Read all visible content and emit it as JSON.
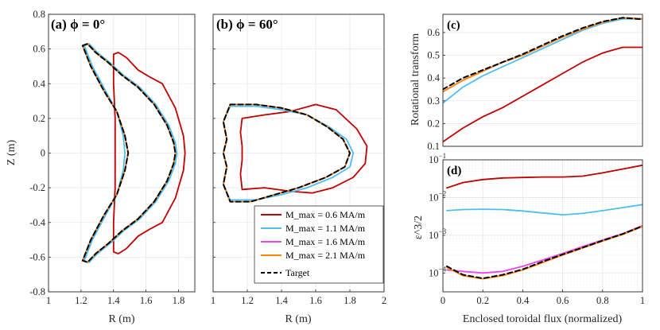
{
  "colors": {
    "m06": "#c00000",
    "m11": "#4dbeee",
    "m16": "#ee44ee",
    "m21": "#ff8800",
    "target": "#000000"
  },
  "chart_data": [
    {
      "id": "a",
      "type": "line",
      "panel_label": "(a) ϕ = 0°",
      "xlabel": "R (m)",
      "ylabel": "Z (m)",
      "xlim": [
        1,
        1.9
      ],
      "ylim": [
        -0.8,
        0.8
      ],
      "xticks": [
        1,
        1.2,
        1.4,
        1.6,
        1.8
      ],
      "yticks": [
        -0.8,
        -0.6,
        -0.4,
        -0.2,
        0,
        0.2,
        0.4,
        0.6,
        0.8
      ],
      "ytick_labels": [
        "-0.8",
        "-0.6",
        "-0.4",
        "-0.2",
        "0",
        "0.2",
        "0.4",
        "0.6",
        "0.8"
      ],
      "series": [
        {
          "name": "M_max = 0.6 MA/m",
          "color_key": "m06",
          "x": [
            1.4,
            1.43,
            1.48,
            1.55,
            1.62,
            1.7,
            1.78,
            1.83,
            1.84,
            1.83,
            1.78,
            1.7,
            1.62,
            1.55,
            1.48,
            1.43,
            1.4,
            1.4,
            1.41,
            1.41,
            1.41,
            1.4,
            1.4
          ],
          "y": [
            0.57,
            0.58,
            0.55,
            0.48,
            0.44,
            0.4,
            0.26,
            0.1,
            0.0,
            -0.1,
            -0.26,
            -0.4,
            -0.44,
            -0.48,
            -0.55,
            -0.58,
            -0.57,
            -0.4,
            -0.2,
            0.0,
            0.2,
            0.4,
            0.57
          ]
        },
        {
          "name": "M_max = 1.1 MA/m",
          "color_key": "m11",
          "x": [
            1.22,
            1.25,
            1.3,
            1.38,
            1.46,
            1.56,
            1.66,
            1.74,
            1.78,
            1.79,
            1.78,
            1.74,
            1.66,
            1.56,
            1.46,
            1.38,
            1.3,
            1.25,
            1.22,
            1.27,
            1.35,
            1.42,
            1.46,
            1.47,
            1.46,
            1.42,
            1.35,
            1.27,
            1.22
          ],
          "y": [
            0.62,
            0.63,
            0.58,
            0.52,
            0.45,
            0.38,
            0.28,
            0.16,
            0.06,
            0.0,
            -0.06,
            -0.16,
            -0.28,
            -0.38,
            -0.45,
            -0.52,
            -0.58,
            -0.63,
            -0.62,
            -0.5,
            -0.36,
            -0.24,
            -0.1,
            0.0,
            0.1,
            0.24,
            0.36,
            0.5,
            0.62
          ]
        },
        {
          "name": "M_max = 1.6 MA/m",
          "color_key": "m16",
          "x": [
            1.21,
            1.24,
            1.29,
            1.37,
            1.45,
            1.55,
            1.65,
            1.73,
            1.77,
            1.78,
            1.77,
            1.73,
            1.65,
            1.55,
            1.45,
            1.37,
            1.29,
            1.24,
            1.21,
            1.26,
            1.34,
            1.42,
            1.47,
            1.49,
            1.47,
            1.42,
            1.34,
            1.26,
            1.21
          ],
          "y": [
            0.62,
            0.63,
            0.58,
            0.52,
            0.45,
            0.38,
            0.28,
            0.16,
            0.06,
            0.0,
            -0.06,
            -0.16,
            -0.28,
            -0.38,
            -0.45,
            -0.52,
            -0.58,
            -0.63,
            -0.62,
            -0.5,
            -0.36,
            -0.24,
            -0.1,
            0.0,
            0.1,
            0.24,
            0.36,
            0.5,
            0.62
          ]
        },
        {
          "name": "M_max = 2.1 MA/m",
          "color_key": "m21",
          "x": [
            1.21,
            1.24,
            1.29,
            1.37,
            1.45,
            1.55,
            1.65,
            1.73,
            1.77,
            1.78,
            1.77,
            1.73,
            1.65,
            1.55,
            1.45,
            1.37,
            1.29,
            1.24,
            1.21,
            1.26,
            1.34,
            1.42,
            1.47,
            1.49,
            1.47,
            1.42,
            1.34,
            1.26,
            1.21
          ],
          "y": [
            0.62,
            0.63,
            0.58,
            0.52,
            0.45,
            0.38,
            0.28,
            0.16,
            0.06,
            0.0,
            -0.06,
            -0.16,
            -0.28,
            -0.38,
            -0.45,
            -0.52,
            -0.58,
            -0.63,
            -0.62,
            -0.5,
            -0.36,
            -0.24,
            -0.1,
            0.0,
            0.1,
            0.24,
            0.36,
            0.5,
            0.62
          ]
        },
        {
          "name": "Target",
          "color_key": "target",
          "dashed": true,
          "x": [
            1.21,
            1.24,
            1.29,
            1.37,
            1.45,
            1.55,
            1.65,
            1.73,
            1.77,
            1.78,
            1.77,
            1.73,
            1.65,
            1.55,
            1.45,
            1.37,
            1.29,
            1.24,
            1.21,
            1.26,
            1.34,
            1.42,
            1.47,
            1.49,
            1.47,
            1.42,
            1.34,
            1.26,
            1.21
          ],
          "y": [
            0.62,
            0.63,
            0.58,
            0.52,
            0.45,
            0.38,
            0.28,
            0.16,
            0.06,
            0.0,
            -0.06,
            -0.16,
            -0.28,
            -0.38,
            -0.45,
            -0.52,
            -0.58,
            -0.63,
            -0.62,
            -0.5,
            -0.36,
            -0.24,
            -0.1,
            0.0,
            0.1,
            0.24,
            0.36,
            0.5,
            0.62
          ]
        }
      ]
    },
    {
      "id": "b",
      "type": "line",
      "panel_label": "(b) ϕ = 60°",
      "xlabel": "R (m)",
      "ylabel": "",
      "xlim": [
        1,
        2
      ],
      "ylim": [
        -0.8,
        0.8
      ],
      "xticks": [
        1,
        1.2,
        1.4,
        1.6,
        1.8,
        2
      ],
      "yticks": [
        -0.8,
        -0.6,
        -0.4,
        -0.2,
        0,
        0.2,
        0.4,
        0.6,
        0.8
      ],
      "series": [
        {
          "name": "M_max = 0.6 MA/m",
          "color_key": "m06",
          "x": [
            1.17,
            1.3,
            1.45,
            1.6,
            1.72,
            1.84,
            1.9,
            1.89,
            1.82,
            1.7,
            1.58,
            1.45,
            1.3,
            1.17,
            1.16,
            1.17,
            1.17,
            1.16,
            1.17
          ],
          "y": [
            0.2,
            0.22,
            0.24,
            0.28,
            0.25,
            0.14,
            0.04,
            -0.06,
            -0.14,
            -0.2,
            -0.23,
            -0.22,
            -0.2,
            -0.21,
            -0.12,
            -0.04,
            0.04,
            0.12,
            0.2
          ]
        },
        {
          "name": "M_max = 1.1 MA/m",
          "color_key": "m11",
          "x": [
            1.1,
            1.25,
            1.4,
            1.55,
            1.68,
            1.78,
            1.82,
            1.8,
            1.7,
            1.55,
            1.4,
            1.25,
            1.1,
            1.06,
            1.08,
            1.06,
            1.08,
            1.06,
            1.1
          ],
          "y": [
            0.27,
            0.27,
            0.25,
            0.22,
            0.15,
            0.08,
            0.0,
            -0.08,
            -0.14,
            -0.2,
            -0.24,
            -0.27,
            -0.27,
            -0.18,
            -0.08,
            0.0,
            0.08,
            0.18,
            0.27
          ]
        },
        {
          "name": "M_max = 1.6 MA/m",
          "color_key": "m16",
          "x": [
            1.1,
            1.25,
            1.4,
            1.55,
            1.67,
            1.76,
            1.8,
            1.77,
            1.66,
            1.5,
            1.36,
            1.22,
            1.1,
            1.06,
            1.08,
            1.06,
            1.08,
            1.06,
            1.1
          ],
          "y": [
            0.28,
            0.28,
            0.26,
            0.22,
            0.15,
            0.08,
            0.0,
            -0.08,
            -0.14,
            -0.2,
            -0.24,
            -0.28,
            -0.28,
            -0.18,
            -0.08,
            0.0,
            0.08,
            0.18,
            0.28
          ]
        },
        {
          "name": "M_max = 2.1 MA/m",
          "color_key": "m21",
          "x": [
            1.1,
            1.25,
            1.4,
            1.55,
            1.67,
            1.76,
            1.8,
            1.77,
            1.66,
            1.5,
            1.36,
            1.22,
            1.1,
            1.06,
            1.08,
            1.06,
            1.08,
            1.06,
            1.1
          ],
          "y": [
            0.28,
            0.28,
            0.26,
            0.22,
            0.15,
            0.08,
            0.0,
            -0.08,
            -0.14,
            -0.2,
            -0.24,
            -0.28,
            -0.28,
            -0.18,
            -0.08,
            0.0,
            0.08,
            0.18,
            0.28
          ]
        },
        {
          "name": "Target",
          "color_key": "target",
          "dashed": true,
          "x": [
            1.1,
            1.25,
            1.4,
            1.55,
            1.67,
            1.76,
            1.8,
            1.77,
            1.66,
            1.5,
            1.36,
            1.22,
            1.1,
            1.06,
            1.08,
            1.06,
            1.08,
            1.06,
            1.1
          ],
          "y": [
            0.28,
            0.28,
            0.26,
            0.22,
            0.15,
            0.08,
            0.0,
            -0.08,
            -0.14,
            -0.2,
            -0.24,
            -0.28,
            -0.28,
            -0.18,
            -0.08,
            0.0,
            0.08,
            0.18,
            0.28
          ]
        }
      ],
      "legend": {
        "placement": "bottom-right",
        "entries": [
          {
            "color_key": "m06",
            "label": "M_max = 0.6 MA/m"
          },
          {
            "color_key": "m11",
            "label": "M_max = 1.1 MA/m"
          },
          {
            "color_key": "m16",
            "label": "M_max = 1.6 MA/m"
          },
          {
            "color_key": "m21",
            "label": "M_max = 2.1 MA/m"
          },
          {
            "color_key": "target",
            "label": "Target",
            "dashed": true
          }
        ]
      }
    },
    {
      "id": "c",
      "type": "line",
      "panel_label": "(c)",
      "xlabel": "",
      "ylabel": "Rotational transform",
      "xlim": [
        0,
        1
      ],
      "ylim": [
        0.1,
        0.68
      ],
      "yticks": [
        0.1,
        0.2,
        0.3,
        0.4,
        0.5,
        0.6
      ],
      "ytick_labels": [
        "0.1",
        "0.2",
        "0.3",
        "0.4",
        "0.5",
        "0.6"
      ],
      "x": [
        0.0,
        0.1,
        0.2,
        0.3,
        0.4,
        0.5,
        0.6,
        0.7,
        0.8,
        0.9,
        1.0
      ],
      "series": [
        {
          "name": "M_max = 0.6 MA/m",
          "color_key": "m06",
          "values": [
            0.12,
            0.18,
            0.23,
            0.27,
            0.32,
            0.37,
            0.42,
            0.47,
            0.51,
            0.535,
            0.535
          ]
        },
        {
          "name": "M_max = 1.1 MA/m",
          "color_key": "m11",
          "values": [
            0.29,
            0.36,
            0.41,
            0.45,
            0.49,
            0.53,
            0.57,
            0.61,
            0.64,
            0.66,
            0.66
          ]
        },
        {
          "name": "M_max = 1.6 MA/m",
          "color_key": "m16",
          "values": [
            0.34,
            0.39,
            0.43,
            0.47,
            0.5,
            0.54,
            0.58,
            0.615,
            0.645,
            0.665,
            0.66
          ]
        },
        {
          "name": "M_max = 2.1 MA/m",
          "color_key": "m21",
          "values": [
            0.34,
            0.39,
            0.43,
            0.47,
            0.5,
            0.54,
            0.58,
            0.615,
            0.645,
            0.665,
            0.66
          ]
        },
        {
          "name": "Target",
          "color_key": "target",
          "dashed": true,
          "values": [
            0.35,
            0.4,
            0.435,
            0.47,
            0.505,
            0.545,
            0.585,
            0.62,
            0.648,
            0.665,
            0.658
          ]
        }
      ]
    },
    {
      "id": "d",
      "type": "line",
      "panel_label": "(d)",
      "xlabel": "Enclosed toroidal flux (normalized)",
      "ylabel": "ε^3/2",
      "yscale": "log",
      "xlim": [
        0,
        1
      ],
      "ylim_log10": [
        -4.5,
        -1
      ],
      "xticks": [
        0,
        0.2,
        0.4,
        0.6,
        0.8,
        1
      ],
      "xtick_labels": [
        "0",
        "0.2",
        "0.4",
        "0.6",
        "0.8",
        "1"
      ],
      "ytick_exponents": [
        -4,
        -3,
        -2,
        -1
      ],
      "ytick_base": "10",
      "x": [
        0.02,
        0.1,
        0.2,
        0.3,
        0.4,
        0.5,
        0.6,
        0.7,
        0.8,
        0.9,
        1.0
      ],
      "series": [
        {
          "name": "M_max = 0.6 MA/m",
          "color_key": "m06",
          "values": [
            0.018,
            0.025,
            0.03,
            0.033,
            0.034,
            0.035,
            0.035,
            0.037,
            0.045,
            0.057,
            0.072
          ]
        },
        {
          "name": "M_max = 1.1 MA/m",
          "color_key": "m11",
          "values": [
            0.0045,
            0.0048,
            0.0049,
            0.0048,
            0.0044,
            0.0039,
            0.0035,
            0.0038,
            0.0045,
            0.0054,
            0.0065
          ]
        },
        {
          "name": "M_max = 1.6 MA/m",
          "color_key": "m16",
          "values": [
            0.00012,
            0.00011,
            0.0001,
            0.00011,
            0.00015,
            0.00022,
            0.00033,
            0.0005,
            0.00075,
            0.0011,
            0.0018
          ]
        },
        {
          "name": "M_max = 2.1 MA/m",
          "color_key": "m21",
          "values": [
            0.00014,
            8.5e-05,
            7e-05,
            8.5e-05,
            0.00012,
            0.00019,
            0.0003,
            0.00046,
            0.0007,
            0.00105,
            0.0017
          ]
        },
        {
          "name": "Target",
          "color_key": "target",
          "dashed": true,
          "values": [
            0.00015,
            9e-05,
            7.2e-05,
            9e-05,
            0.000125,
            0.0002,
            0.00031,
            0.00047,
            0.00072,
            0.00108,
            0.00175
          ]
        }
      ]
    }
  ]
}
